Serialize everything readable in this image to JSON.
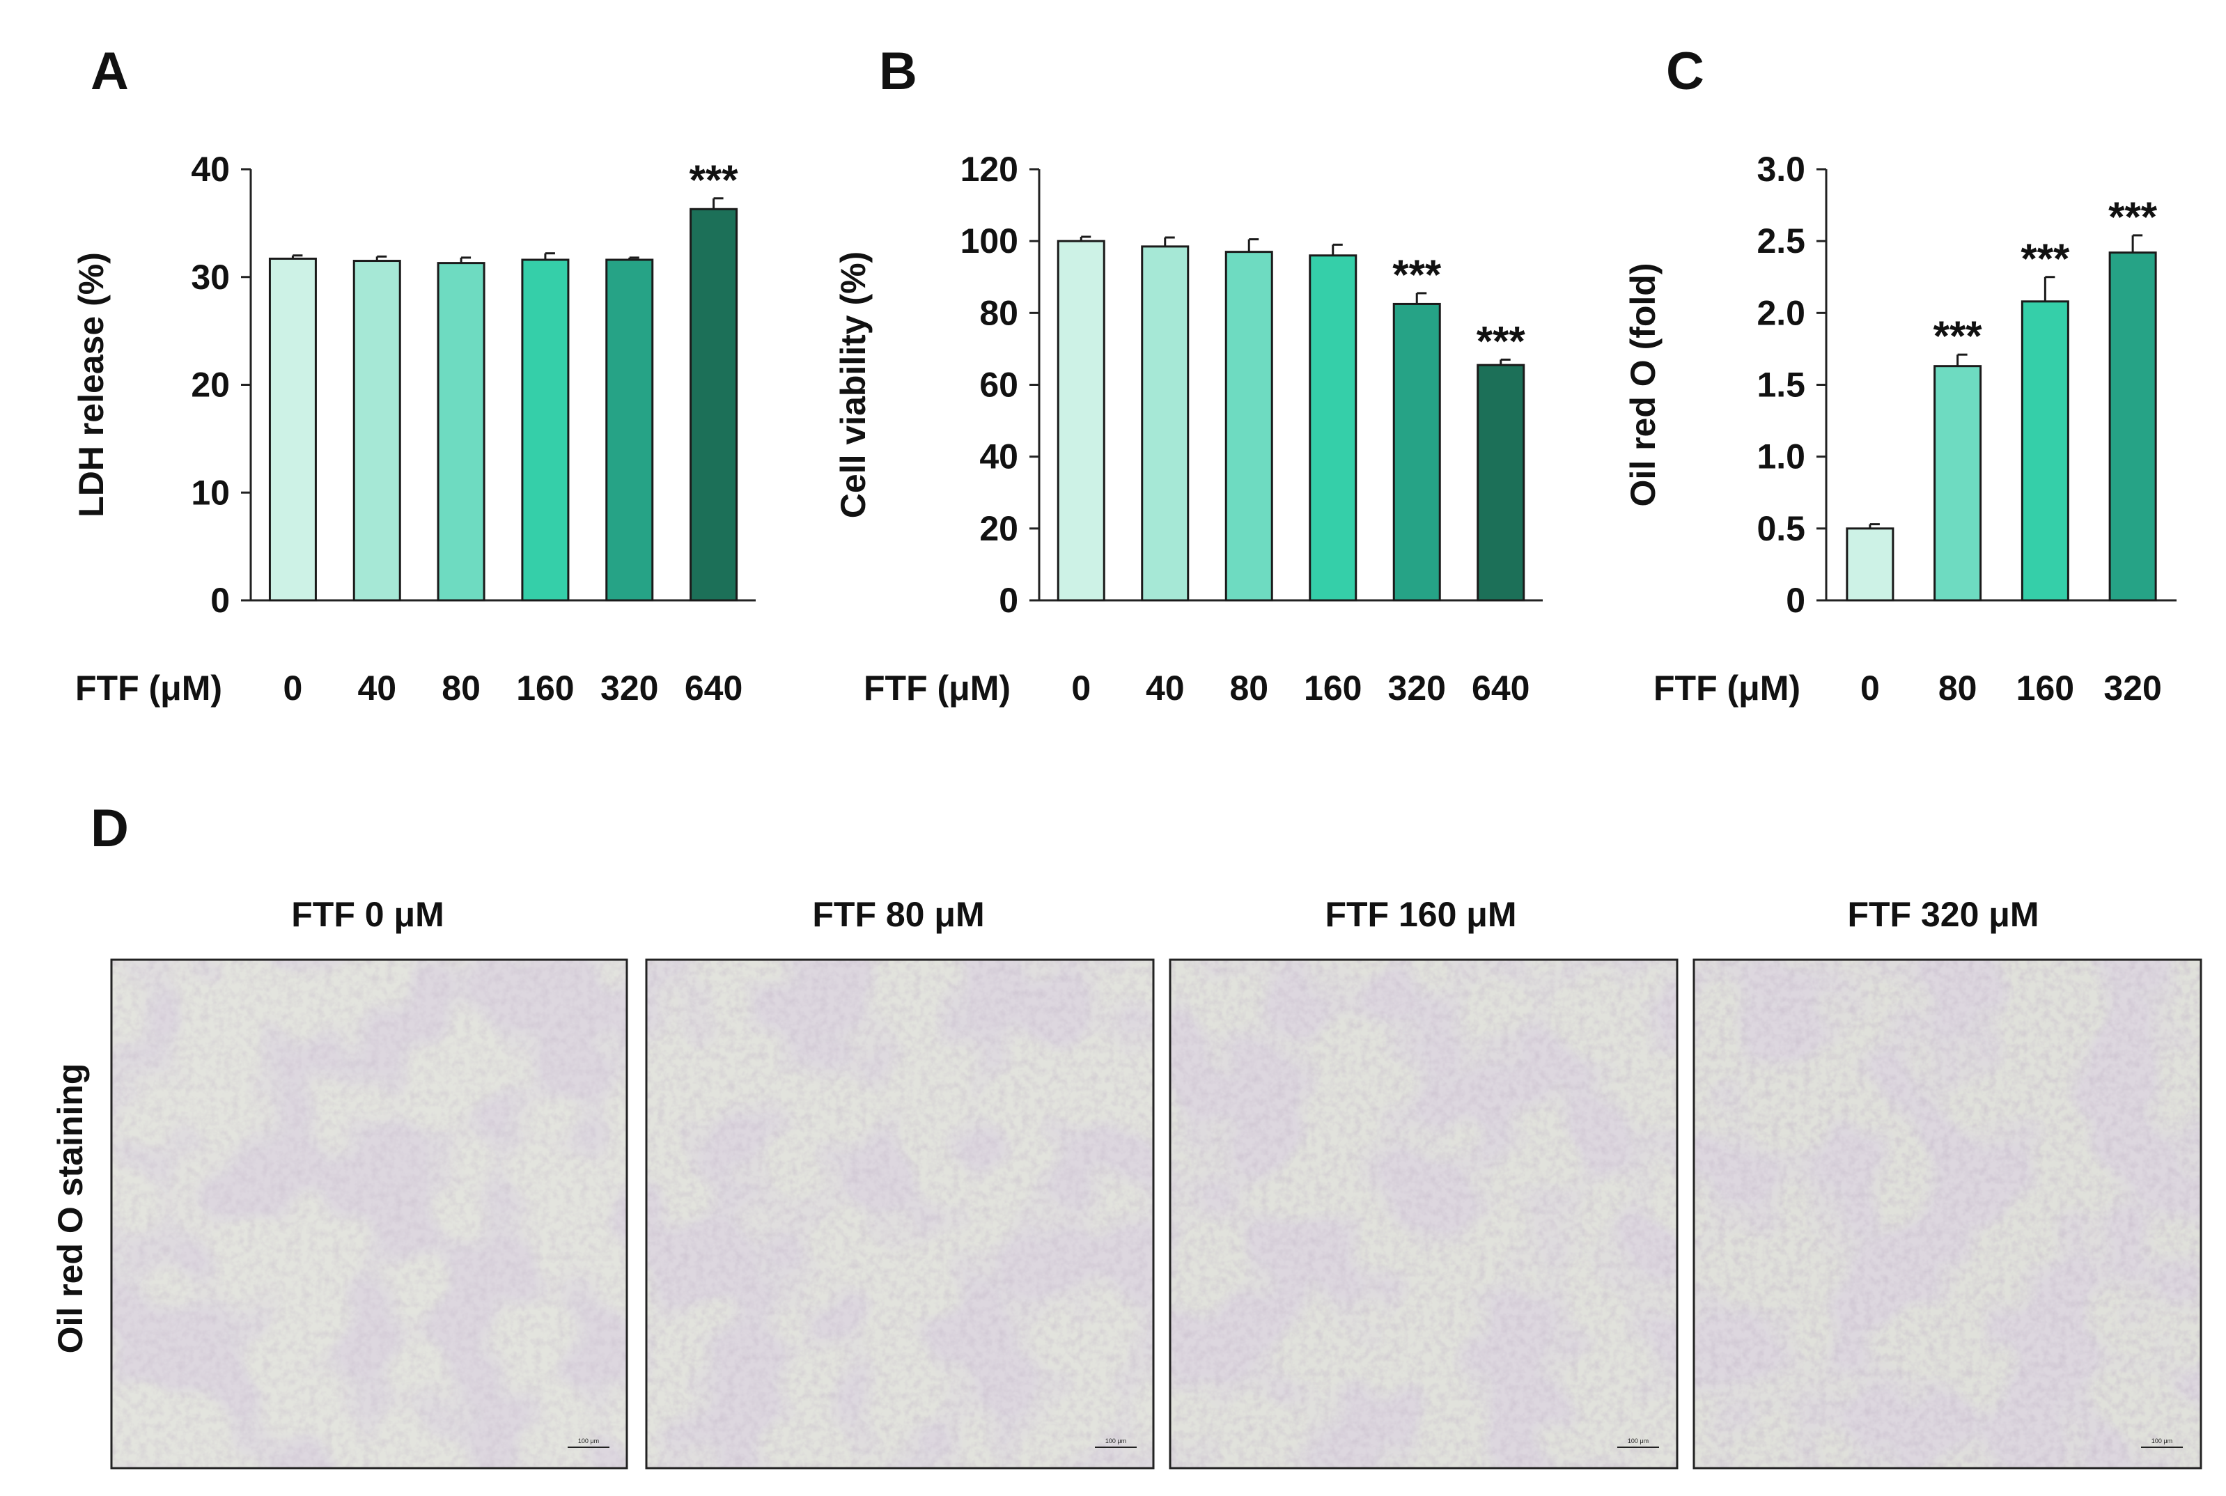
{
  "panels": {
    "A": {
      "letter": "A"
    },
    "B": {
      "letter": "B"
    },
    "C": {
      "letter": "C"
    },
    "D": {
      "letter": "D"
    }
  },
  "chart_data": [
    {
      "id": "A",
      "type": "bar",
      "ylabel": "LDH release (%)",
      "x_header": "FTF (μM)",
      "categories": [
        "0",
        "40",
        "80",
        "160",
        "320",
        "640"
      ],
      "values": [
        31.7,
        31.5,
        31.3,
        31.6,
        31.6,
        36.3
      ],
      "errors": [
        0.3,
        0.4,
        0.5,
        0.6,
        0.2,
        1.0
      ],
      "significance": [
        "",
        "",
        "",
        "",
        "",
        "***"
      ],
      "yticks": [
        "0",
        "10",
        "20",
        "30",
        "40"
      ],
      "ylim": [
        0,
        40
      ],
      "colors": [
        "#cdf2e6",
        "#a6e8d6",
        "#6edbc1",
        "#35cfa9",
        "#26a386",
        "#1c7058"
      ]
    },
    {
      "id": "B",
      "type": "bar",
      "ylabel": "Cell viability (%)",
      "x_header": "FTF (μM)",
      "categories": [
        "0",
        "40",
        "80",
        "160",
        "320",
        "640"
      ],
      "values": [
        100,
        98.5,
        97.0,
        96.0,
        82.5,
        65.5
      ],
      "errors": [
        1.2,
        2.5,
        3.5,
        3.0,
        3.0,
        1.5
      ],
      "significance": [
        "",
        "",
        "",
        "",
        "***",
        "***"
      ],
      "yticks": [
        "0",
        "20",
        "40",
        "60",
        "80",
        "100",
        "120"
      ],
      "ylim": [
        0,
        120
      ],
      "colors": [
        "#cdf2e6",
        "#a6e8d6",
        "#6edbc1",
        "#35cfa9",
        "#26a386",
        "#1c7058"
      ]
    },
    {
      "id": "C",
      "type": "bar",
      "ylabel": "Oil red O (fold)",
      "x_header": "FTF (μM)",
      "categories": [
        "0",
        "80",
        "160",
        "320"
      ],
      "values": [
        0.5,
        1.63,
        2.08,
        2.42
      ],
      "errors": [
        0.03,
        0.08,
        0.17,
        0.12
      ],
      "significance": [
        "",
        "***",
        "***",
        "***"
      ],
      "yticks": [
        "0",
        "0.5",
        "1.0",
        "1.5",
        "2.0",
        "2.5",
        "3.0"
      ],
      "ylim": [
        0,
        3.0
      ],
      "colors": [
        "#cdf2e6",
        "#6edbc1",
        "#35cfa9",
        "#26a386"
      ]
    }
  ],
  "images": {
    "row_label": "Oil red O staining",
    "titles": [
      "FTF 0 μM",
      "FTF 80 μM",
      "FTF 160 μM",
      "FTF 320 μM"
    ],
    "scale_bar_label": "100 μm"
  }
}
